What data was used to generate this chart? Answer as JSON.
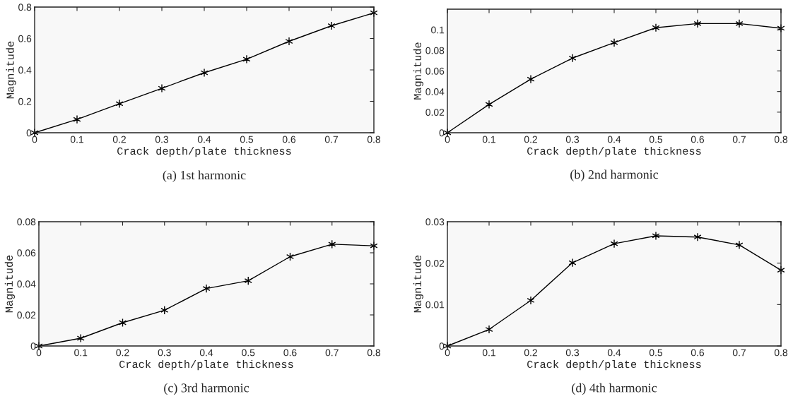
{
  "chart_data": [
    {
      "type": "line",
      "title": "(a) 1st harmonic",
      "xlabel": "Crack depth/plate thickness",
      "ylabel": "Magnitude",
      "x": [
        0,
        0.1,
        0.2,
        0.3,
        0.4,
        0.5,
        0.6,
        0.7,
        0.8
      ],
      "series": [
        {
          "color": "#000000",
          "values": [
            0,
            0.085,
            0.185,
            0.283,
            0.382,
            0.468,
            0.582,
            0.681,
            0.763
          ]
        }
      ],
      "xlim": [
        0,
        0.8
      ],
      "xticks": [
        0,
        0.1,
        0.2,
        0.3,
        0.4,
        0.5,
        0.6,
        0.7,
        0.8
      ],
      "ylim": [
        0,
        0.8
      ],
      "yticks": [
        0,
        0.2,
        0.4,
        0.6,
        0.8
      ],
      "marker": "cross",
      "line_style": "solid",
      "grid": false,
      "legend": false
    },
    {
      "type": "line",
      "title": "(b) 2nd harmonic",
      "xlabel": "Crack depth/plate thickness",
      "ylabel": "Magnitude",
      "x": [
        0,
        0.1,
        0.2,
        0.3,
        0.4,
        0.5,
        0.6,
        0.7,
        0.8
      ],
      "series": [
        {
          "color": "#000000",
          "values": [
            0,
            0.0275,
            0.052,
            0.0725,
            0.0875,
            0.102,
            0.106,
            0.106,
            0.1015
          ]
        }
      ],
      "xlim": [
        0,
        0.8
      ],
      "xticks": [
        0,
        0.1,
        0.2,
        0.3,
        0.4,
        0.5,
        0.6,
        0.7,
        0.8
      ],
      "ylim": [
        0,
        0.12
      ],
      "yticks": [
        0,
        0.02,
        0.04,
        0.06,
        0.08,
        0.1
      ],
      "marker": "cross",
      "line_style": "solid",
      "grid": false,
      "legend": false
    },
    {
      "type": "line",
      "title": "(c) 3rd harmonic",
      "xlabel": "Crack depth/plate thickness",
      "ylabel": "Magnitude",
      "x": [
        0,
        0.1,
        0.2,
        0.3,
        0.4,
        0.5,
        0.6,
        0.7,
        0.8
      ],
      "series": [
        {
          "color": "#000000",
          "values": [
            0,
            0.005,
            0.015,
            0.023,
            0.037,
            0.042,
            0.0575,
            0.0655,
            0.0645
          ]
        }
      ],
      "xlim": [
        0,
        0.8
      ],
      "xticks": [
        0,
        0.1,
        0.2,
        0.3,
        0.4,
        0.5,
        0.6,
        0.7,
        0.8
      ],
      "ylim": [
        0,
        0.08
      ],
      "yticks": [
        0,
        0.02,
        0.04,
        0.06,
        0.08
      ],
      "marker": "cross",
      "line_style": "solid",
      "grid": false,
      "legend": false
    },
    {
      "type": "line",
      "title": "(d) 4th harmonic",
      "xlabel": "Crack depth/plate thickness",
      "ylabel": "Magnitude",
      "x": [
        0,
        0.1,
        0.2,
        0.3,
        0.4,
        0.5,
        0.6,
        0.7,
        0.8
      ],
      "series": [
        {
          "color": "#000000",
          "values": [
            0,
            0.004,
            0.011,
            0.0201,
            0.0247,
            0.0266,
            0.0263,
            0.0244,
            0.0183
          ]
        }
      ],
      "xlim": [
        0,
        0.8
      ],
      "xticks": [
        0,
        0.1,
        0.2,
        0.3,
        0.4,
        0.5,
        0.6,
        0.7,
        0.8
      ],
      "ylim": [
        0,
        0.03
      ],
      "yticks": [
        0,
        0.01,
        0.02,
        0.03
      ],
      "marker": "cross",
      "line_style": "solid",
      "grid": false,
      "legend": false
    }
  ]
}
